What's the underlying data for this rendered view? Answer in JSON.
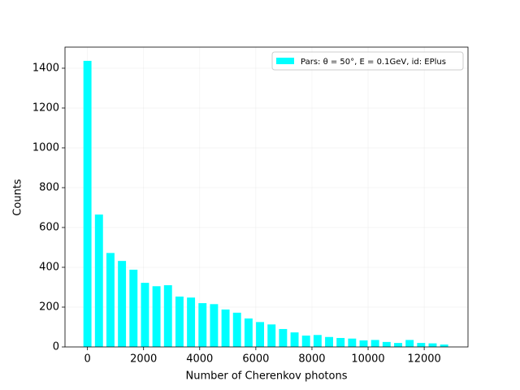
{
  "chart_data": {
    "type": "histogram",
    "xlabel": "Number of Cherenkov photons",
    "ylabel": "Counts",
    "bins": [
      -205,
      205,
      615,
      1025,
      1435,
      1845,
      2255,
      2665,
      3075,
      3485,
      3895,
      4305,
      4715,
      5125,
      5535,
      5945,
      6355,
      6765,
      7175,
      7585,
      7995,
      8405,
      8815,
      9225,
      9635,
      10045,
      10455,
      10865,
      11275,
      11685,
      12095,
      12505,
      12915
    ],
    "series": [
      {
        "name": "Pars: θ = 50°, E = 0.1GeV, id: EPlus",
        "color": "#00ffff",
        "values": [
          1437,
          665,
          472,
          432,
          388,
          322,
          305,
          310,
          253,
          248,
          220,
          215,
          188,
          172,
          143,
          125,
          113,
          90,
          73,
          57,
          60,
          50,
          45,
          42,
          33,
          35,
          25,
          20,
          35,
          20,
          18,
          12
        ]
      }
    ],
    "rwidth": 0.7,
    "xlim": [
      -800,
      13560
    ],
    "ylim": [
      0,
      1506
    ],
    "xticks": [
      0,
      2000,
      4000,
      6000,
      8000,
      10000,
      12000
    ],
    "yticks": [
      0,
      200,
      400,
      600,
      800,
      1000,
      1200,
      1400
    ],
    "grid": true,
    "legend": "upper right"
  }
}
